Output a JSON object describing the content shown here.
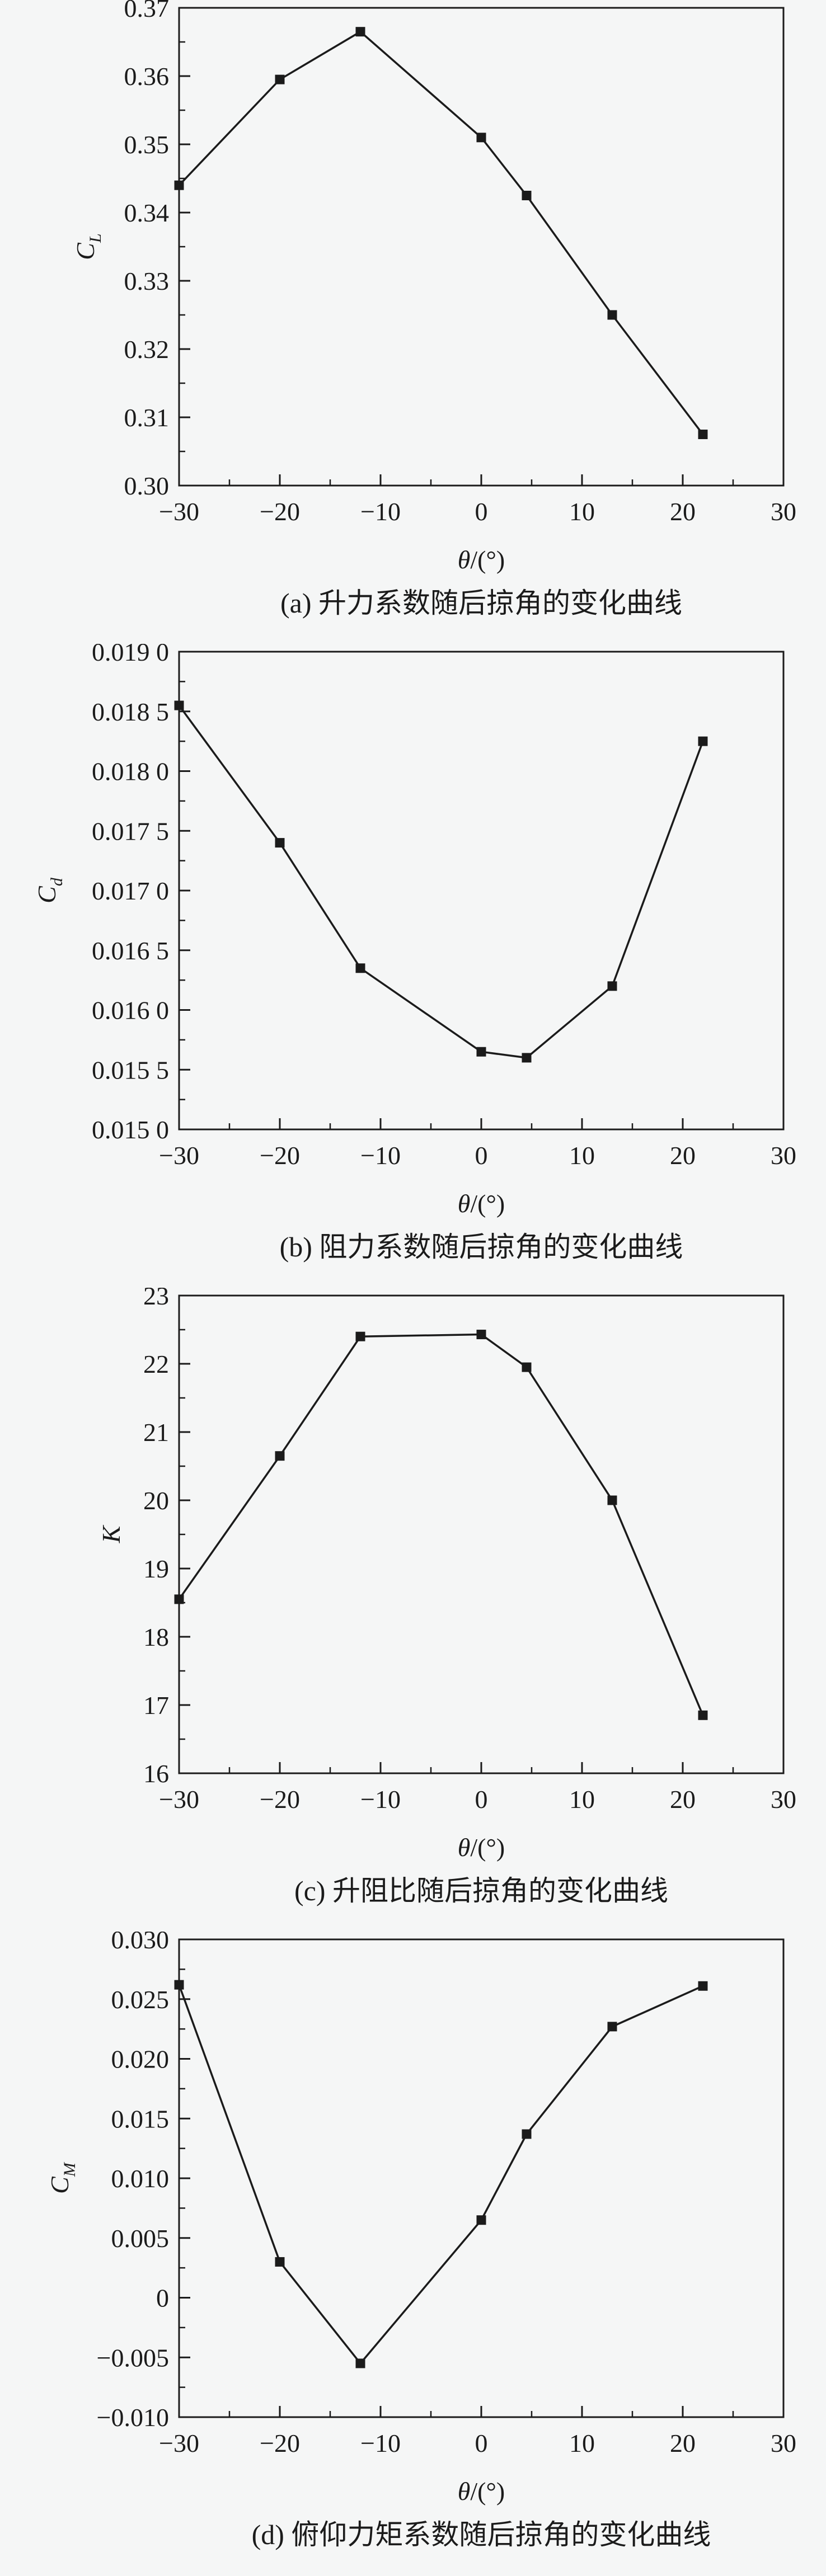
{
  "page": {
    "background_color": "#f5f6f6",
    "ink_color": "#1b1b1b"
  },
  "chart_data": [
    {
      "id": "a",
      "type": "line",
      "caption": "(a) 升力系数随后掠角的变化曲线",
      "ylabel": {
        "main": "C",
        "sub": "L"
      },
      "xlabel": {
        "italic": "θ",
        "plain": "/(°)"
      },
      "x": [
        -30,
        -20,
        -12,
        0,
        4.5,
        13,
        22
      ],
      "y": [
        0.344,
        0.3595,
        0.3665,
        0.351,
        0.3425,
        0.325,
        0.3075
      ],
      "xlim": [
        -30,
        30
      ],
      "xmajor": 10,
      "xminor": 5,
      "xtick_labels": [
        "−30",
        "−20",
        "−10",
        "0",
        "10",
        "20",
        "30"
      ],
      "ylim": [
        0.3,
        0.37
      ],
      "ymajor": 0.01,
      "yminor": 0.005,
      "ytick_labels": [
        "0.30",
        "0.31",
        "0.32",
        "0.33",
        "0.34",
        "0.35",
        "0.36",
        "0.37"
      ],
      "grid": false,
      "legend": "none",
      "marker": "filled-square"
    },
    {
      "id": "b",
      "type": "line",
      "caption": "(b) 阻力系数随后掠角的变化曲线",
      "ylabel": {
        "main": "C",
        "sub": "d"
      },
      "xlabel": {
        "italic": "θ",
        "plain": "/(°)"
      },
      "x": [
        -30,
        -20,
        -12,
        0,
        4.5,
        13,
        22
      ],
      "y": [
        0.01855,
        0.0174,
        0.01635,
        0.01565,
        0.0156,
        0.0162,
        0.01825
      ],
      "xlim": [
        -30,
        30
      ],
      "xmajor": 10,
      "xminor": 5,
      "xtick_labels": [
        "−30",
        "−20",
        "−10",
        "0",
        "10",
        "20",
        "30"
      ],
      "ylim": [
        0.015,
        0.019
      ],
      "ymajor": 0.0005,
      "yminor": 0.00025,
      "ytick_labels": [
        "0.015 0",
        "0.015 5",
        "0.016 0",
        "0.016 5",
        "0.017 0",
        "0.017 5",
        "0.018 0",
        "0.018 5",
        "0.019 0"
      ],
      "grid": false,
      "legend": "none",
      "marker": "filled-square"
    },
    {
      "id": "c",
      "type": "line",
      "caption": "(c) 升阻比随后掠角的变化曲线",
      "ylabel": {
        "main": "K",
        "sub": ""
      },
      "xlabel": {
        "italic": "θ",
        "plain": "/(°)"
      },
      "x": [
        -30,
        -20,
        -12,
        0,
        4.5,
        13,
        22
      ],
      "y": [
        18.55,
        20.65,
        22.4,
        22.43,
        21.95,
        20.0,
        16.85
      ],
      "xlim": [
        -30,
        30
      ],
      "xmajor": 10,
      "xminor": 5,
      "xtick_labels": [
        "−30",
        "−20",
        "−10",
        "0",
        "10",
        "20",
        "30"
      ],
      "ylim": [
        16,
        23
      ],
      "ymajor": 1,
      "yminor": 0.5,
      "ytick_labels": [
        "16",
        "17",
        "18",
        "19",
        "20",
        "21",
        "22",
        "23"
      ],
      "grid": false,
      "legend": "none",
      "marker": "filled-square"
    },
    {
      "id": "d",
      "type": "line",
      "caption": "(d) 俯仰力矩系数随后掠角的变化曲线",
      "ylabel": {
        "main": "C",
        "sub": "M"
      },
      "xlabel": {
        "italic": "θ",
        "plain": "/(°)"
      },
      "x": [
        -30,
        -20,
        -12,
        0,
        4.5,
        13,
        22
      ],
      "y": [
        0.0262,
        0.003,
        -0.0055,
        0.0065,
        0.0137,
        0.0227,
        0.0261
      ],
      "xlim": [
        -30,
        30
      ],
      "xmajor": 10,
      "xminor": 5,
      "xtick_labels": [
        "−30",
        "−20",
        "−10",
        "0",
        "10",
        "20",
        "30"
      ],
      "ylim": [
        -0.01,
        0.03
      ],
      "ymajor": 0.005,
      "yminor": 0.0025,
      "ytick_labels": [
        "−0.010",
        "−0.005",
        "0",
        "0.005",
        "0.010",
        "0.015",
        "0.020",
        "0.025",
        "0.030"
      ],
      "grid": false,
      "legend": "none",
      "marker": "filled-square"
    }
  ]
}
